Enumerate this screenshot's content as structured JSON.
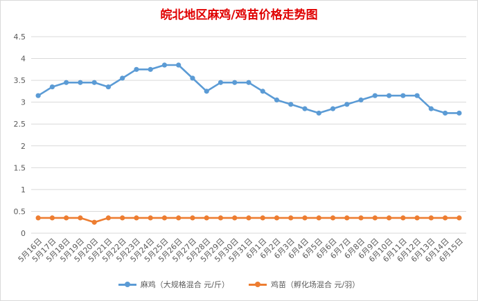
{
  "chart_data": {
    "type": "line",
    "title": "皖北地区麻鸡/鸡苗价格走势图",
    "categories": [
      "5月16日",
      "5月17日",
      "5月18日",
      "5月19日",
      "5月20日",
      "5月21日",
      "5月22日",
      "5月23日",
      "5月24日",
      "5月25日",
      "5月26日",
      "5月27日",
      "5月28日",
      "5月29日",
      "5月30日",
      "5月31日",
      "6月1日",
      "6月2日",
      "6月3日",
      "6月4日",
      "6月5日",
      "6月6日",
      "6月7日",
      "6月8日",
      "6月9日",
      "6月10日",
      "6月11日",
      "6月12日",
      "6月13日",
      "6月14日",
      "6月15日"
    ],
    "series": [
      {
        "name": "麻鸡（大规格混合 元/斤）",
        "color": "#5b9bd5",
        "values": [
          3.15,
          3.35,
          3.45,
          3.45,
          3.45,
          3.35,
          3.55,
          3.75,
          3.75,
          3.85,
          3.85,
          3.55,
          3.25,
          3.45,
          3.45,
          3.45,
          3.25,
          3.05,
          2.95,
          2.85,
          2.75,
          2.85,
          2.95,
          3.05,
          3.15,
          3.15,
          3.15,
          3.15,
          2.85,
          2.75,
          2.75
        ]
      },
      {
        "name": "鸡苗（孵化场混合 元/羽）",
        "color": "#ed7d31",
        "values": [
          0.35,
          0.35,
          0.35,
          0.35,
          0.25,
          0.35,
          0.35,
          0.35,
          0.35,
          0.35,
          0.35,
          0.35,
          0.35,
          0.35,
          0.35,
          0.35,
          0.35,
          0.35,
          0.35,
          0.35,
          0.35,
          0.35,
          0.35,
          0.35,
          0.35,
          0.35,
          0.35,
          0.35,
          0.35,
          0.35,
          0.35
        ]
      }
    ],
    "y_ticks": [
      "0",
      "0.5",
      "1",
      "1.5",
      "2",
      "2.5",
      "3",
      "3.5",
      "4",
      "4.5"
    ],
    "ylim": [
      0,
      4.5
    ],
    "grid": true,
    "legend_position": "bottom"
  }
}
